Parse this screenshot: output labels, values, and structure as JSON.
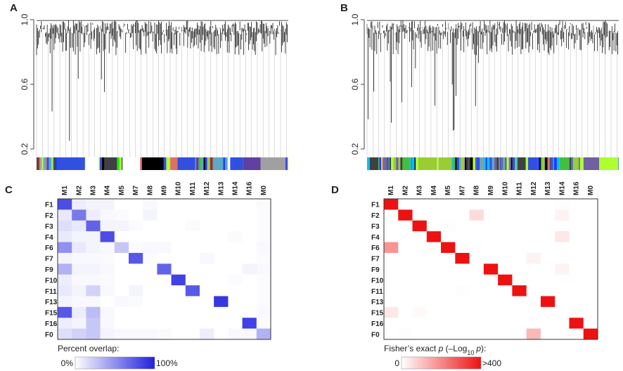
{
  "chart_data": [
    {
      "type": "dendrogram",
      "label": "A",
      "ylim": [
        0.2,
        1.0
      ],
      "yticks": [
        {
          "value": 1.0,
          "label": "1.0"
        },
        0.6,
        0.2
      ],
      "module_colors": [
        "#5aa9c8",
        "#e07060",
        "#9b3030",
        "#a0a0a0",
        "#9acd32",
        "#adff2f",
        "#ffffff",
        "#000000",
        "#1e3cff",
        "#3050e0",
        "#40c040",
        "#00ff00",
        "#6040a0",
        "#404040"
      ]
    },
    {
      "type": "dendrogram",
      "label": "B",
      "ylim": [
        0.2,
        1.0
      ],
      "yticks": [
        {
          "value": 1.0,
          "label": "1.0"
        },
        0.6,
        0.2
      ],
      "module_colors": [
        "#5aa9c8",
        "#7060a0",
        "#a0a0a0",
        "#40c040",
        "#9acd32",
        "#adff2f",
        "#000000",
        "#1e3cff",
        "#3050e0",
        "#00c0ff",
        "#404040",
        "#e07060"
      ]
    },
    {
      "type": "heatmap",
      "label": "C",
      "columns": [
        "M1",
        "M2",
        "M3",
        "M4",
        "M5",
        "M7",
        "M8",
        "M9",
        "M10",
        "M11",
        "M12",
        "M13",
        "M14",
        "M16",
        "M0"
      ],
      "rows": [
        "F1",
        "F2",
        "F3",
        "F4",
        "F6",
        "F7",
        "F9",
        "F10",
        "F11",
        "F13",
        "F15",
        "F16",
        "F0"
      ],
      "color": "#2020e0",
      "zlim": [
        0,
        100
      ],
      "colorbar": {
        "title": "Percent overlap:",
        "ticks": [
          {
            "value": 0,
            "label": "0%"
          },
          {
            "value": 100,
            "label": "100%"
          }
        ]
      },
      "values": [
        [
          80,
          8,
          5,
          5,
          0,
          0,
          3,
          0,
          0,
          0,
          0,
          0,
          0,
          0,
          2
        ],
        [
          10,
          60,
          8,
          3,
          2,
          0,
          5,
          0,
          0,
          0,
          0,
          0,
          0,
          0,
          2
        ],
        [
          15,
          10,
          70,
          5,
          5,
          2,
          0,
          0,
          0,
          2,
          0,
          0,
          0,
          0,
          2
        ],
        [
          10,
          5,
          5,
          80,
          0,
          0,
          0,
          0,
          0,
          0,
          0,
          0,
          2,
          0,
          2
        ],
        [
          50,
          10,
          5,
          3,
          25,
          2,
          3,
          3,
          0,
          0,
          0,
          0,
          0,
          0,
          3
        ],
        [
          5,
          3,
          3,
          2,
          0,
          75,
          2,
          0,
          0,
          0,
          3,
          0,
          0,
          0,
          2
        ],
        [
          35,
          5,
          5,
          3,
          0,
          0,
          0,
          70,
          0,
          0,
          0,
          0,
          0,
          5,
          3
        ],
        [
          8,
          3,
          3,
          2,
          0,
          0,
          0,
          0,
          85,
          0,
          0,
          0,
          2,
          0,
          2
        ],
        [
          10,
          5,
          20,
          3,
          0,
          5,
          0,
          0,
          0,
          75,
          0,
          0,
          0,
          0,
          2
        ],
        [
          5,
          3,
          3,
          0,
          3,
          2,
          0,
          0,
          0,
          0,
          0,
          90,
          0,
          0,
          2
        ],
        [
          75,
          8,
          30,
          3,
          0,
          0,
          0,
          0,
          0,
          0,
          0,
          0,
          0,
          0,
          3
        ],
        [
          8,
          5,
          25,
          3,
          0,
          0,
          0,
          0,
          0,
          0,
          0,
          0,
          0,
          85,
          2
        ],
        [
          15,
          20,
          25,
          5,
          3,
          3,
          3,
          2,
          0,
          0,
          8,
          0,
          3,
          3,
          35
        ]
      ]
    },
    {
      "type": "heatmap",
      "label": "D",
      "columns": [
        "M1",
        "M2",
        "M3",
        "M4",
        "M5",
        "M7",
        "M8",
        "M9",
        "M10",
        "M11",
        "M12",
        "M13",
        "M14",
        "M16",
        "M0"
      ],
      "rows": [
        "F1",
        "F2",
        "F3",
        "F4",
        "F6",
        "F7",
        "F9",
        "F10",
        "F11",
        "F13",
        "F15",
        "F16",
        "F0"
      ],
      "color": "#ee1111",
      "zlim": [
        0,
        400
      ],
      "colorbar": {
        "title": [
          "Fisher’s exact ",
          "p",
          " (–Log",
          "10",
          "p",
          "):"
        ],
        "ticks": [
          0,
          {
            "value": 400,
            "label": ">400"
          }
        ]
      },
      "values": [
        [
          400,
          0,
          0,
          0,
          0,
          0,
          0,
          0,
          0,
          0,
          0,
          0,
          5,
          0,
          0
        ],
        [
          0,
          400,
          0,
          0,
          0,
          0,
          60,
          0,
          0,
          0,
          0,
          0,
          20,
          0,
          0
        ],
        [
          0,
          0,
          400,
          0,
          5,
          0,
          0,
          0,
          0,
          0,
          0,
          0,
          0,
          0,
          0
        ],
        [
          0,
          0,
          0,
          400,
          0,
          0,
          0,
          0,
          0,
          0,
          0,
          0,
          40,
          0,
          0
        ],
        [
          180,
          0,
          0,
          0,
          400,
          0,
          3,
          0,
          0,
          0,
          0,
          0,
          0,
          0,
          0
        ],
        [
          0,
          0,
          0,
          0,
          0,
          400,
          0,
          0,
          0,
          0,
          20,
          0,
          0,
          0,
          0
        ],
        [
          0,
          0,
          0,
          0,
          0,
          0,
          0,
          400,
          0,
          0,
          0,
          0,
          20,
          0,
          0
        ],
        [
          0,
          0,
          0,
          0,
          0,
          0,
          0,
          0,
          400,
          0,
          0,
          0,
          0,
          0,
          0
        ],
        [
          0,
          0,
          0,
          0,
          0,
          5,
          0,
          0,
          0,
          400,
          0,
          0,
          0,
          0,
          0
        ],
        [
          0,
          0,
          0,
          0,
          0,
          0,
          0,
          0,
          0,
          0,
          0,
          400,
          0,
          0,
          0
        ],
        [
          40,
          0,
          10,
          0,
          0,
          0,
          0,
          0,
          0,
          0,
          0,
          0,
          0,
          0,
          0
        ],
        [
          0,
          0,
          0,
          0,
          0,
          0,
          0,
          0,
          0,
          0,
          0,
          0,
          0,
          400,
          0
        ],
        [
          0,
          5,
          0,
          0,
          0,
          0,
          0,
          0,
          0,
          0,
          120,
          0,
          0,
          0,
          400
        ]
      ]
    }
  ]
}
